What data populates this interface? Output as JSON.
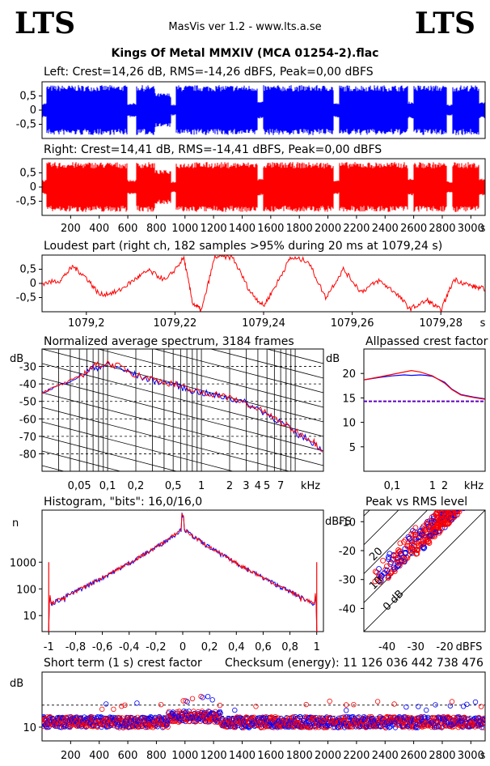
{
  "header": {
    "logo_left": "LTS",
    "logo_right": "LTS",
    "app": "MasVis ver 1.2 - www.lts.a.se",
    "file": "Kings Of Metal MMXIV (MCA 01254-2).flac"
  },
  "panels": {
    "left": {
      "label": "Left: Crest=14,26 dB, RMS=-14,26 dBFS, Peak=0,00 dBFS",
      "color": "#0000ff"
    },
    "right": {
      "label": "Right: Crest=14,41 dB, RMS=-14,41 dBFS, Peak=0,00 dBFS",
      "color": "#ff0000"
    },
    "loudest": {
      "label": "Loudest part (right ch, 182 samples >95% during 20 ms at 1079,24 s)"
    },
    "spectrum": {
      "label": "Normalized average spectrum, 3184 frames"
    },
    "allpassed": {
      "label": "Allpassed crest factor"
    },
    "histogram": {
      "label": "Histogram, \"bits\": 16,0/16,0"
    },
    "peakrms": {
      "label": "Peak vs RMS level"
    },
    "shortterm": {
      "label": "Short term (1 s) crest factor"
    },
    "checksum": {
      "label": "Checksum (energy):  11 126 036 442 738 476"
    }
  },
  "chart_data": [
    {
      "type": "area",
      "name": "left-waveform",
      "x_range": [
        0,
        3100
      ],
      "ylim": [
        -1,
        1
      ],
      "yticks": [
        "0,5",
        "0",
        "-0,5"
      ],
      "xticks": [
        "200",
        "400",
        "600",
        "800",
        "1000",
        "1200",
        "1400",
        "1600",
        "1800",
        "2000",
        "2200",
        "2400",
        "2600",
        "2800",
        "3000"
      ],
      "xunit": "s"
    },
    {
      "type": "area",
      "name": "right-waveform",
      "x_range": [
        0,
        3100
      ],
      "ylim": [
        -1,
        1
      ],
      "yticks": [
        "0,5",
        "0",
        "-0,5"
      ],
      "xticks": [
        "200",
        "400",
        "600",
        "800",
        "1000",
        "1200",
        "1400",
        "1600",
        "1800",
        "2000",
        "2200",
        "2400",
        "2600",
        "2800",
        "3000"
      ],
      "xunit": "s"
    },
    {
      "type": "line",
      "name": "loudest-part",
      "x_range": [
        1079.19,
        1079.29
      ],
      "xticks": [
        "1079,2",
        "1079,22",
        "1079,24",
        "1079,26",
        "1079,28"
      ],
      "xunit": "s",
      "yticks": [
        "0,5",
        "0",
        "-0,5"
      ],
      "ylim": [
        -1,
        1
      ]
    },
    {
      "type": "line",
      "name": "average-spectrum",
      "ylabel": "dB",
      "ylim": [
        -90,
        -20
      ],
      "yticks": [
        -30,
        -40,
        -50,
        -60,
        -70,
        -80
      ],
      "xticks": [
        "0,05",
        "0,1",
        "0,2",
        "0,5",
        "1",
        "2",
        "3",
        "4",
        "5",
        "7"
      ],
      "xunit": "kHz",
      "x_range_khz": [
        0.02,
        20
      ],
      "series": [
        {
          "color": "#0000ff",
          "x": [
            0.02,
            0.03,
            0.05,
            0.07,
            0.1,
            0.15,
            0.2,
            0.3,
            0.5,
            0.7,
            1,
            1.5,
            2,
            3,
            5,
            7,
            10,
            15,
            20
          ],
          "y": [
            -45,
            -41,
            -36,
            -31,
            -29,
            -32,
            -35,
            -38,
            -40,
            -43,
            -45,
            -47,
            -48,
            -51,
            -57,
            -62,
            -68,
            -73,
            -78
          ]
        },
        {
          "color": "#ff0000",
          "x": [
            0.02,
            0.03,
            0.05,
            0.07,
            0.1,
            0.15,
            0.2,
            0.3,
            0.5,
            0.7,
            1,
            1.5,
            2,
            3,
            5,
            7,
            10,
            15,
            20
          ],
          "y": [
            -45,
            -41,
            -36,
            -30,
            -28,
            -31,
            -35,
            -37,
            -40,
            -43,
            -45,
            -46,
            -48,
            -51,
            -57,
            -62,
            -67,
            -72,
            -78
          ]
        }
      ]
    },
    {
      "type": "line",
      "name": "allpassed-crest",
      "ylabel": "dB",
      "ylim": [
        0,
        25
      ],
      "yticks": [
        20,
        15,
        10,
        5
      ],
      "xticks": [
        "0,1",
        "1",
        "2"
      ],
      "xunit": "kHz",
      "reference": 14.3,
      "series": [
        {
          "color": "#0000ff",
          "x": [
            0.02,
            0.05,
            0.1,
            0.2,
            0.3,
            0.5,
            0.7,
            1,
            2,
            3,
            5,
            10,
            20
          ],
          "y": [
            18.7,
            19.2,
            19.5,
            19.7,
            19.6,
            19.7,
            19.6,
            19.4,
            18.2,
            16.8,
            15.7,
            15.2,
            14.8
          ]
        },
        {
          "color": "#ff0000",
          "x": [
            0.02,
            0.05,
            0.1,
            0.2,
            0.3,
            0.5,
            0.7,
            1,
            2,
            3,
            5,
            10,
            20
          ],
          "y": [
            18.7,
            19.3,
            19.8,
            20.3,
            20.6,
            20.3,
            19.9,
            19.5,
            18.0,
            16.7,
            15.6,
            15.1,
            14.7
          ]
        }
      ]
    },
    {
      "type": "line",
      "name": "histogram",
      "ylabel": "n",
      "yscale": "log",
      "yticks": [
        "1000",
        "100",
        "10"
      ],
      "xticks": [
        "-1",
        "-0,8",
        "-0,6",
        "-0,4",
        "-0,2",
        "0",
        "0,2",
        "0,4",
        "0,6",
        "0,8",
        "1"
      ],
      "xlim": [
        -1.05,
        1.05
      ]
    },
    {
      "type": "scatter",
      "name": "peak-vs-rms",
      "ylabel": "dBFS",
      "xlabel": "dBFS",
      "xlim": [
        -48,
        -6
      ],
      "ylim": [
        -48,
        -6
      ],
      "xticks": [
        "-40",
        "-30",
        "-20"
      ],
      "yticks": [
        "-10",
        "-20",
        "-30",
        "-40"
      ],
      "diagonal_labels": [
        "20",
        "10",
        "0 dB"
      ]
    },
    {
      "type": "scatter",
      "name": "short-term-crest",
      "ylabel": "dB",
      "ytick": "10",
      "xticks": [
        "200",
        "400",
        "600",
        "800",
        "1000",
        "1200",
        "1400",
        "1600",
        "1800",
        "2000",
        "2200",
        "2400",
        "2600",
        "2800",
        "3000"
      ],
      "xunit": "s"
    }
  ]
}
